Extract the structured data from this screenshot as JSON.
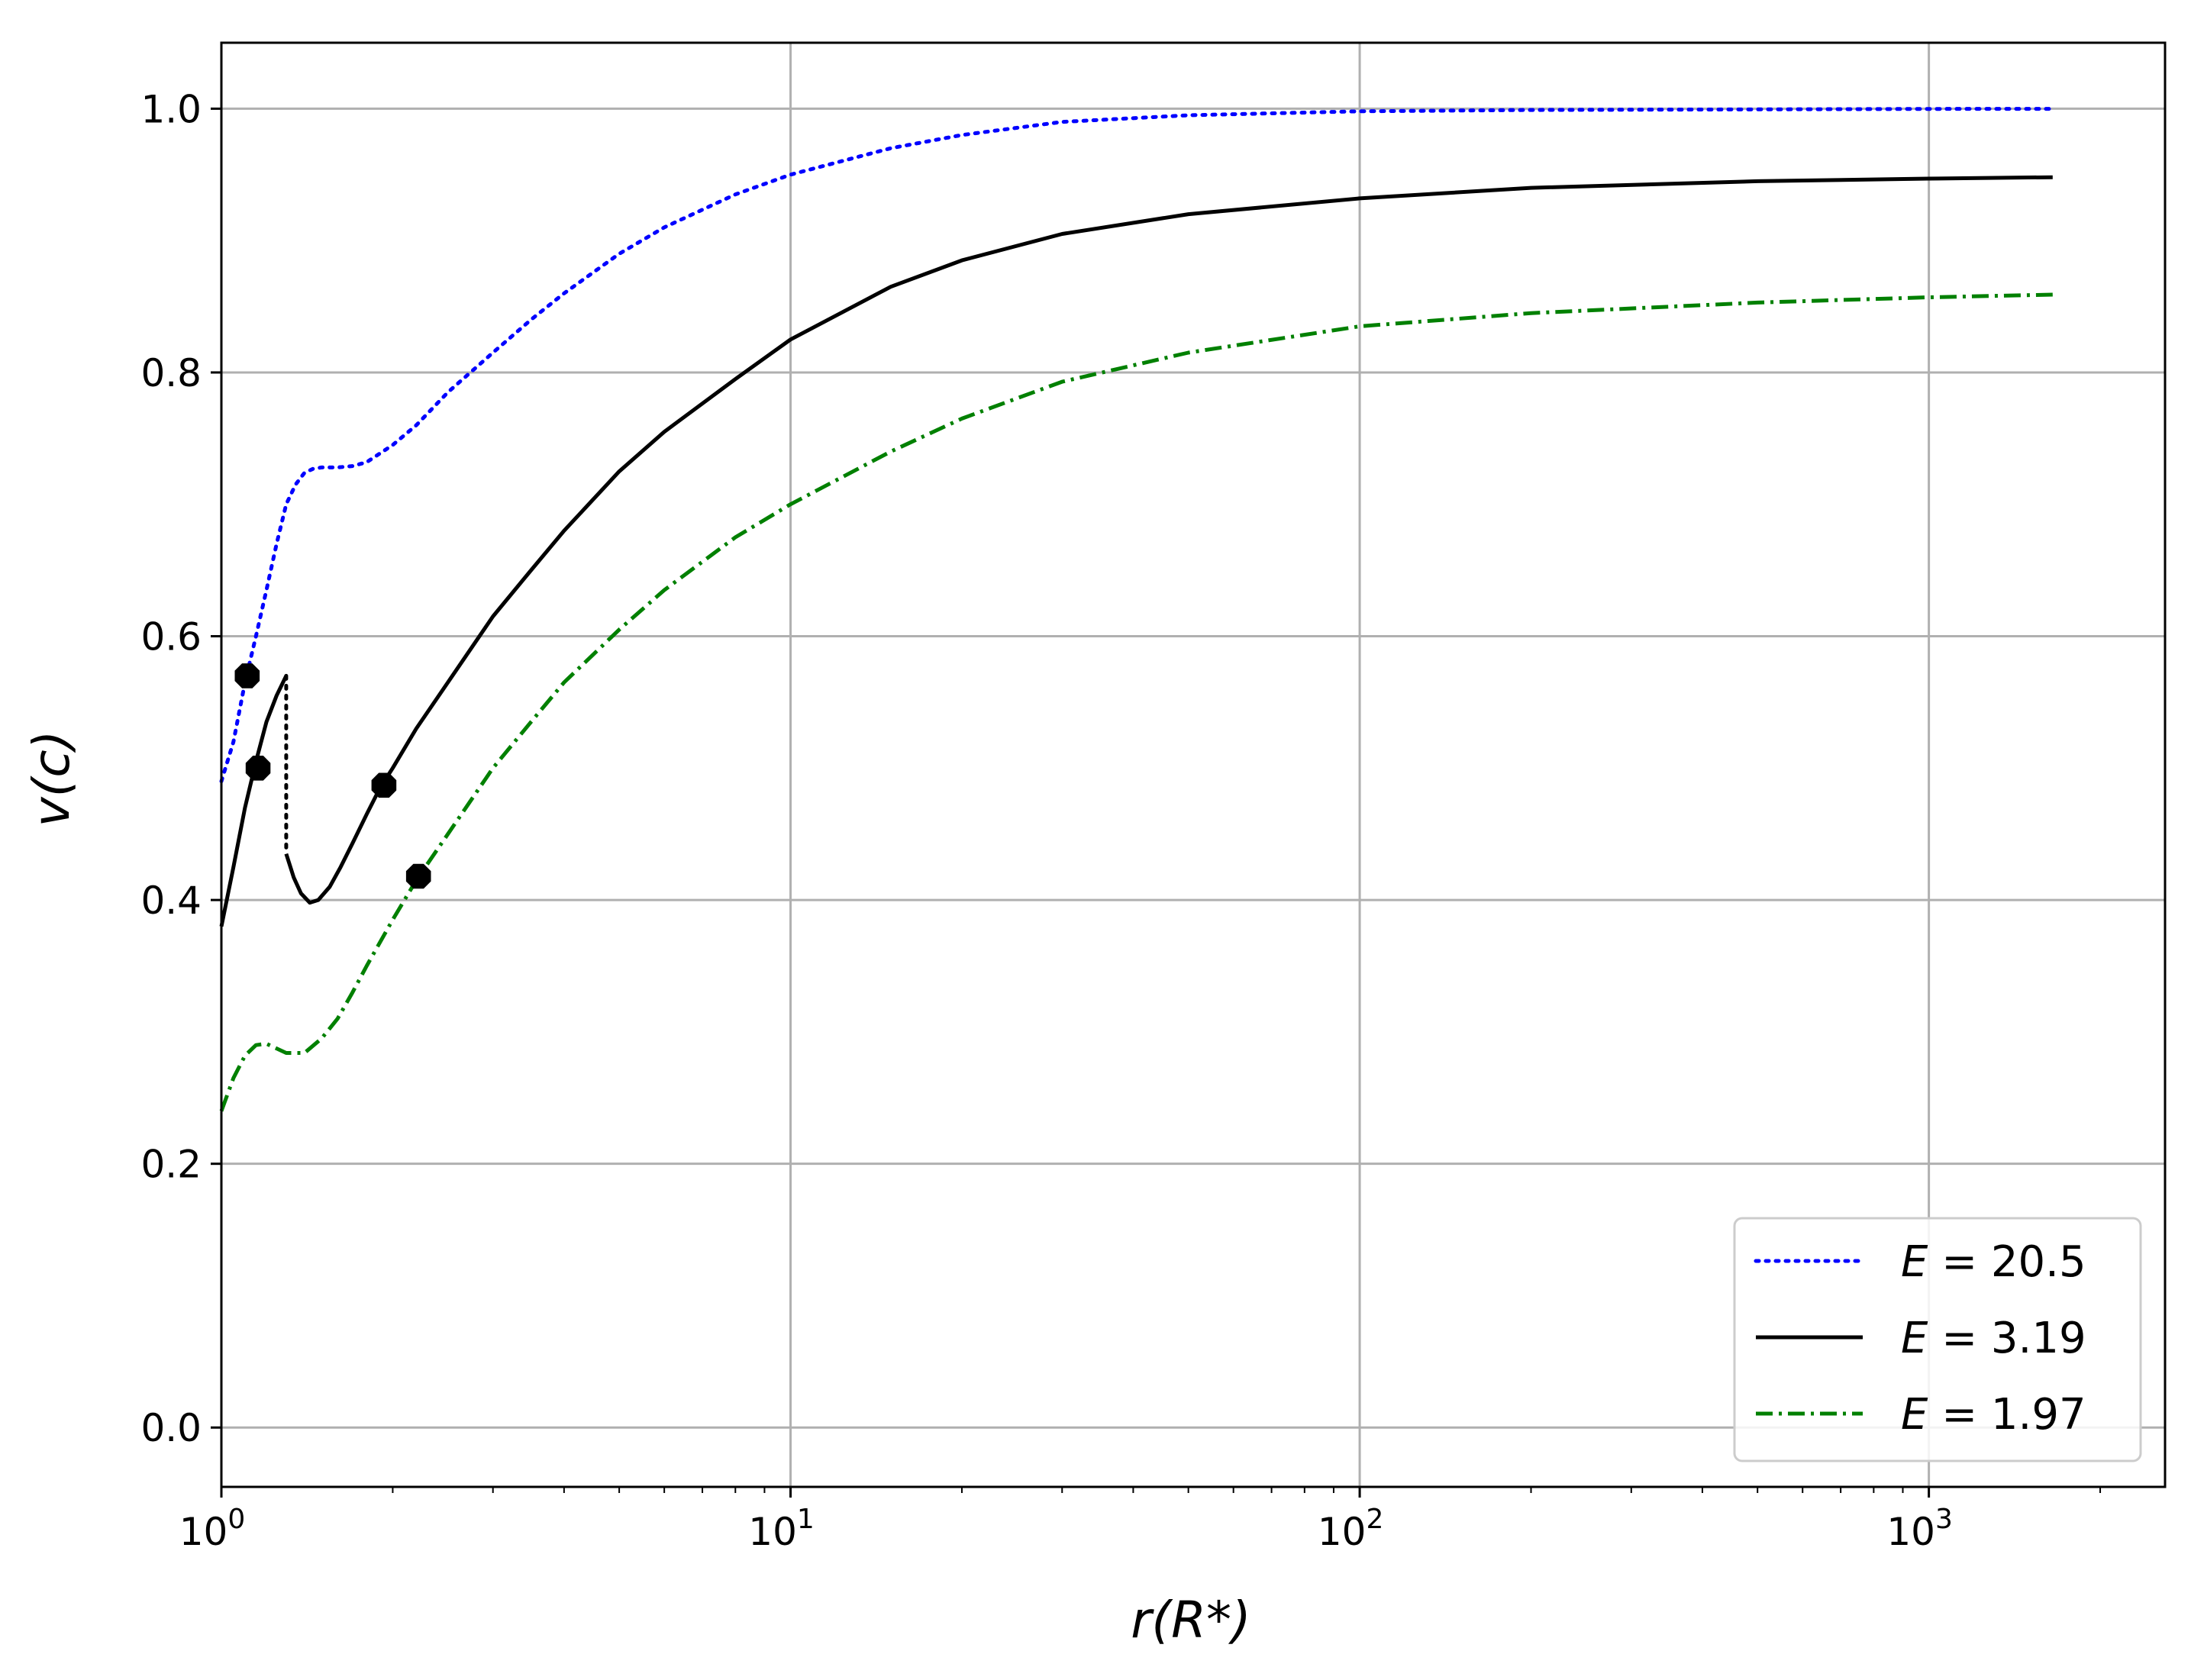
{
  "chart_data": {
    "type": "line",
    "xlabel": "r(R*)",
    "ylabel": "v(c)",
    "xscale": "log",
    "xlim": [
      1,
      2600
    ],
    "ylim": [
      -0.045,
      1.05
    ],
    "grid": true,
    "legend_position": "lower-right",
    "x_ticks": [
      {
        "value": 1,
        "base": "10",
        "exp": "0"
      },
      {
        "value": 10,
        "base": "10",
        "exp": "1"
      },
      {
        "value": 100,
        "base": "10",
        "exp": "2"
      },
      {
        "value": 1000,
        "base": "10",
        "exp": "3"
      }
    ],
    "y_ticks": [
      {
        "value": 0.0,
        "label": "0.0"
      },
      {
        "value": 0.2,
        "label": "0.2"
      },
      {
        "value": 0.4,
        "label": "0.4"
      },
      {
        "value": 0.6,
        "label": "0.6"
      },
      {
        "value": 0.8,
        "label": "0.8"
      },
      {
        "value": 1.0,
        "label": "1.0"
      }
    ],
    "series": [
      {
        "name": "E = 20.5",
        "color": "#0000ff",
        "style": "dotted",
        "x": [
          1.0,
          1.05,
          1.1,
          1.15,
          1.2,
          1.25,
          1.3,
          1.35,
          1.4,
          1.45,
          1.5,
          1.6,
          1.7,
          1.8,
          2.0,
          2.2,
          2.5,
          3.0,
          3.5,
          4.0,
          5.0,
          6.0,
          8.0,
          10,
          15,
          20,
          30,
          50,
          100,
          200,
          500,
          1000,
          1650
        ],
        "y": [
          0.49,
          0.52,
          0.565,
          0.6,
          0.635,
          0.67,
          0.7,
          0.715,
          0.724,
          0.727,
          0.728,
          0.728,
          0.729,
          0.732,
          0.745,
          0.76,
          0.785,
          0.815,
          0.84,
          0.86,
          0.89,
          0.91,
          0.935,
          0.95,
          0.97,
          0.98,
          0.99,
          0.995,
          0.998,
          0.999,
          0.9995,
          0.9998,
          0.9999
        ]
      },
      {
        "name": "E = 3.19",
        "color": "#000000",
        "style": "solid",
        "x": [
          1.0,
          1.05,
          1.1,
          1.15,
          1.2,
          1.25,
          1.3
        ],
        "y": [
          0.38,
          0.425,
          0.47,
          0.505,
          0.535,
          0.555,
          0.57
        ]
      },
      {
        "name": "",
        "color": "#000000",
        "style": "solid",
        "x": [
          1.3,
          1.34,
          1.38,
          1.43,
          1.48,
          1.55,
          1.62,
          1.7,
          1.8,
          1.9,
          2.0,
          2.2,
          2.5,
          3.0,
          3.5,
          4.0,
          5.0,
          6.0,
          8.0,
          10,
          15,
          20,
          30,
          50,
          100,
          200,
          500,
          1000,
          1650
        ],
        "y": [
          0.435,
          0.417,
          0.405,
          0.398,
          0.4,
          0.41,
          0.425,
          0.443,
          0.465,
          0.485,
          0.5,
          0.53,
          0.565,
          0.615,
          0.65,
          0.68,
          0.725,
          0.755,
          0.795,
          0.825,
          0.865,
          0.885,
          0.905,
          0.92,
          0.932,
          0.94,
          0.945,
          0.947,
          0.948
        ]
      },
      {
        "name": "",
        "color": "#000000",
        "style": "dotted",
        "x": [
          1.3,
          1.3
        ],
        "y": [
          0.57,
          0.435
        ]
      },
      {
        "name": "E = 1.97",
        "color": "#008000",
        "style": "dashdot",
        "x": [
          1.0,
          1.05,
          1.1,
          1.15,
          1.2,
          1.3,
          1.4,
          1.5,
          1.6,
          1.7,
          1.8,
          2.0,
          2.2,
          2.5,
          3.0,
          3.5,
          4.0,
          5.0,
          6.0,
          8.0,
          10,
          15,
          20,
          30,
          50,
          100,
          200,
          500,
          1000,
          1650
        ],
        "y": [
          0.24,
          0.265,
          0.282,
          0.29,
          0.291,
          0.284,
          0.284,
          0.295,
          0.31,
          0.33,
          0.35,
          0.385,
          0.415,
          0.45,
          0.5,
          0.535,
          0.565,
          0.605,
          0.635,
          0.675,
          0.7,
          0.74,
          0.765,
          0.793,
          0.815,
          0.835,
          0.845,
          0.853,
          0.857,
          0.859
        ]
      }
    ],
    "markers": [
      {
        "x": 1.11,
        "y": 0.57
      },
      {
        "x": 1.16,
        "y": 0.5
      },
      {
        "x": 1.93,
        "y": 0.487
      },
      {
        "x": 2.22,
        "y": 0.418
      }
    ],
    "legend": [
      {
        "label_prefix": "E",
        "label_value": "= 20.5",
        "color": "#0000ff",
        "style": "dotted"
      },
      {
        "label_prefix": "E",
        "label_value": "= 3.19",
        "color": "#000000",
        "style": "solid"
      },
      {
        "label_prefix": "E",
        "label_value": "= 1.97",
        "color": "#008000",
        "style": "dashdot"
      }
    ]
  }
}
